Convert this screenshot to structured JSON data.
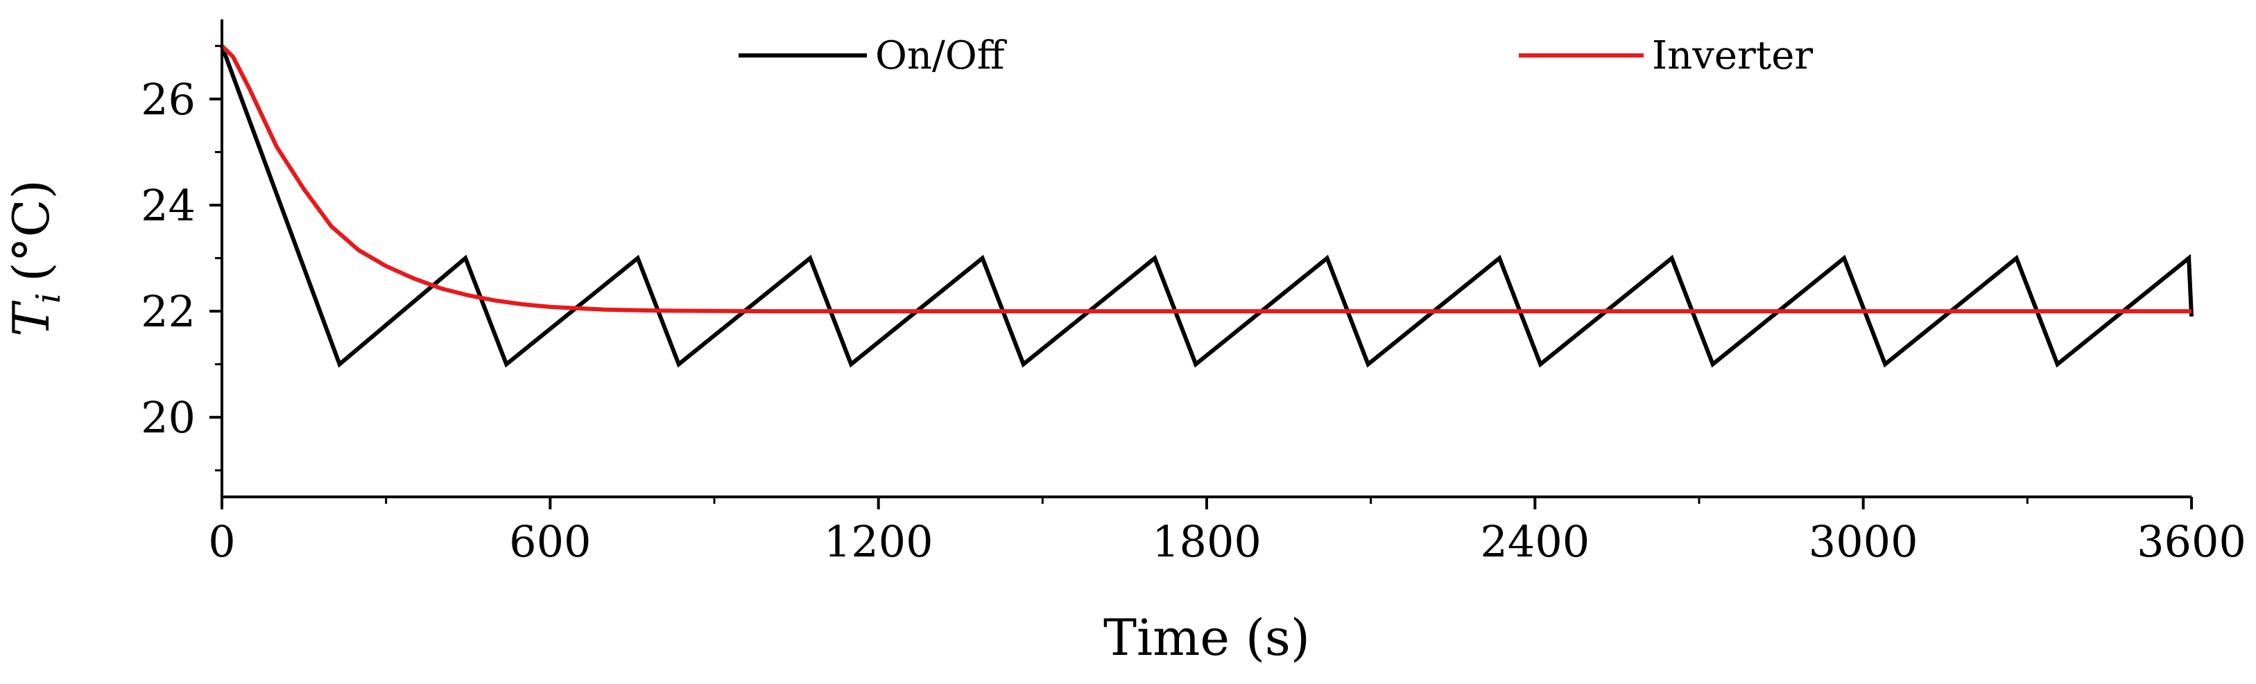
{
  "chart_data": {
    "type": "line",
    "title": "",
    "xlabel": "Time (s)",
    "ylabel": {
      "symbol": "T",
      "subscript": "i",
      "unit": "(°C)"
    },
    "xlim": [
      0,
      3600
    ],
    "ylim": [
      18.5,
      27.5
    ],
    "x_major_ticks": [
      0,
      600,
      1200,
      1800,
      2400,
      3000,
      3600
    ],
    "x_tick_labels": [
      "0",
      "600",
      "1200",
      "1800",
      "2400",
      "3000",
      "3600"
    ],
    "x_minor_ticks": [
      300,
      900,
      1500,
      2100,
      2700,
      3300
    ],
    "y_major_ticks": [
      20,
      22,
      24,
      26
    ],
    "y_tick_labels": [
      "20",
      "22",
      "24",
      "26"
    ],
    "y_minor_ticks": [
      19,
      21,
      23,
      25,
      27
    ],
    "grid": false,
    "legend_placement": "top",
    "series": [
      {
        "name": "On/Off",
        "color": "#000000",
        "x": [
          0,
          215,
          445,
          520,
          760,
          835,
          1075,
          1150,
          1390,
          1465,
          1705,
          1780,
          2020,
          2095,
          2335,
          2410,
          2650,
          2725,
          2965,
          3040,
          3280,
          3355,
          3595,
          3600
        ],
        "y": [
          27,
          21,
          23,
          21,
          23,
          21,
          23,
          21,
          23,
          21,
          23,
          21,
          23,
          21,
          23,
          21,
          23,
          21,
          23,
          21,
          23,
          21,
          23,
          21.9
        ]
      },
      {
        "name": "Inverter",
        "color": "#e8191c",
        "x": [
          0,
          20,
          50,
          100,
          150,
          200,
          250,
          300,
          350,
          400,
          450,
          500,
          550,
          600,
          700,
          800,
          1000,
          1500,
          2000,
          2500,
          3000,
          3600
        ],
        "y": [
          27,
          26.8,
          26.2,
          25.1,
          24.3,
          23.6,
          23.15,
          22.85,
          22.62,
          22.43,
          22.3,
          22.2,
          22.13,
          22.08,
          22.03,
          22.01,
          22.0,
          22.0,
          22.0,
          22.0,
          22.0,
          22.0
        ]
      }
    ]
  }
}
